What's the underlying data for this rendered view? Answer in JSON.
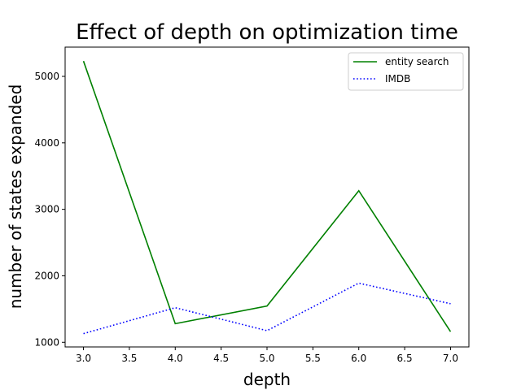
{
  "chart_data": {
    "type": "line",
    "title": "Effect of depth on optimization time",
    "xlabel": "depth",
    "ylabel": "number of states expanded",
    "x": [
      3.0,
      4.0,
      5.0,
      6.0,
      7.0
    ],
    "series": [
      {
        "name": "entity search",
        "values": [
          5230,
          1280,
          1545,
          3280,
          1160
        ],
        "color": "#008000",
        "style": "solid"
      },
      {
        "name": "IMDB",
        "values": [
          1130,
          1520,
          1175,
          1890,
          1580
        ],
        "color": "#0000ff",
        "style": "dotted"
      }
    ],
    "xlim": [
      2.8,
      7.2
    ],
    "ylim": [
      930,
      5440
    ],
    "xticks": [
      "3.0",
      "3.5",
      "4.0",
      "4.5",
      "5.0",
      "5.5",
      "6.0",
      "6.5",
      "7.0"
    ],
    "xtick_values": [
      3.0,
      3.5,
      4.0,
      4.5,
      5.0,
      5.5,
      6.0,
      6.5,
      7.0
    ],
    "yticks": [
      "1000",
      "2000",
      "3000",
      "4000",
      "5000"
    ],
    "ytick_values": [
      1000,
      2000,
      3000,
      4000,
      5000
    ],
    "grid": false,
    "legend_position": "top-right"
  }
}
